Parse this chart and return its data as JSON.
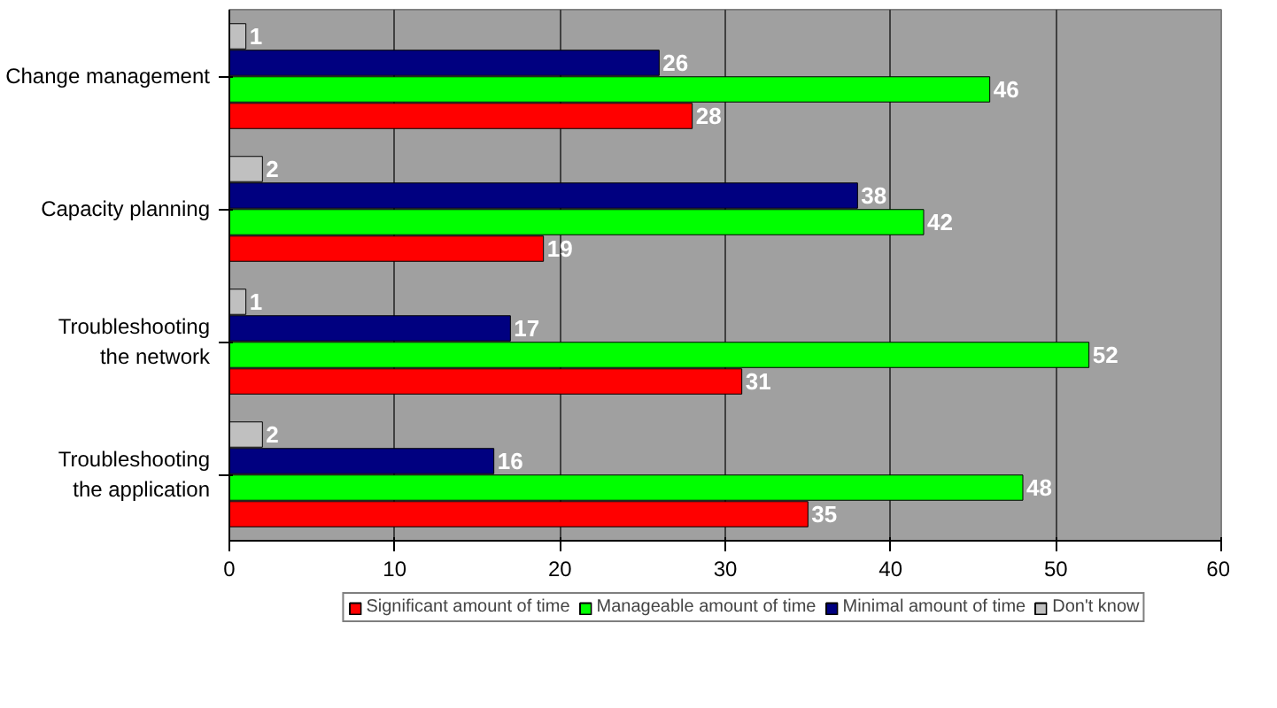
{
  "chart_data": {
    "type": "bar",
    "orientation": "horizontal",
    "categories": [
      "Change management",
      "Capacity planning",
      "Troubleshooting the network",
      "Troubleshooting the application"
    ],
    "series": [
      {
        "name": "Significant amount of time",
        "color": "#ff0000",
        "values": [
          28,
          19,
          31,
          35
        ]
      },
      {
        "name": "Manageable amount of time",
        "color": "#00ff00",
        "values": [
          46,
          42,
          52,
          48
        ]
      },
      {
        "name": "Minimal amount of time",
        "color": "#000080",
        "values": [
          26,
          38,
          17,
          16
        ]
      },
      {
        "name": "Don't know",
        "color": "#c0c0c0",
        "values": [
          1,
          2,
          1,
          2
        ]
      }
    ],
    "xlim": [
      0,
      60
    ],
    "xticks": [
      0,
      10,
      20,
      30,
      40,
      50,
      60
    ],
    "grid": "x",
    "legend": "bottom",
    "data_labels": true
  }
}
